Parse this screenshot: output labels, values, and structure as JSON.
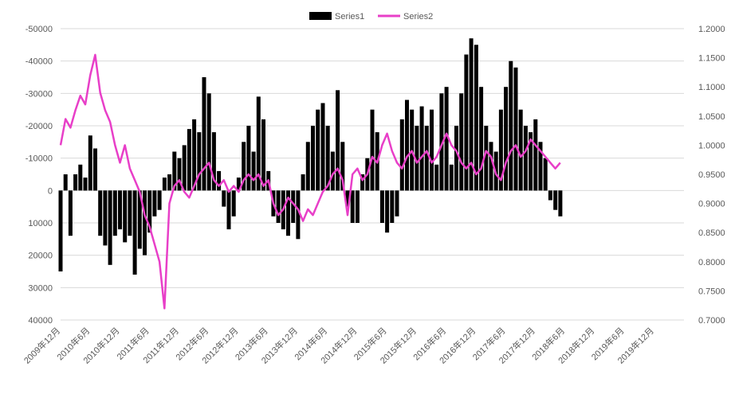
{
  "chart_data": {
    "type": "bar+line",
    "legend": {
      "position": "top-center",
      "entries": [
        {
          "name": "Series1",
          "color": "#000000",
          "marker": "bar"
        },
        {
          "name": "Series2",
          "color": "#e83fc8",
          "marker": "line"
        }
      ]
    },
    "grid": "horizontal",
    "y_left": {
      "reversed": true,
      "min": -50000,
      "max": 40000,
      "ticks": [
        -50000,
        -40000,
        -30000,
        -20000,
        -10000,
        0,
        10000,
        20000,
        30000,
        40000
      ],
      "tick_labels": [
        "-50000",
        "-40000",
        "-30000",
        "-20000",
        "-10000",
        "0",
        "10000",
        "20000",
        "30000",
        "40000"
      ]
    },
    "y_right": {
      "min": 0.7,
      "max": 1.2,
      "ticks": [
        1.2,
        1.15,
        1.1,
        1.05,
        1.0,
        0.95,
        0.9,
        0.85,
        0.8,
        0.75,
        0.7
      ],
      "tick_labels": [
        "1.2000",
        "1.1500",
        "1.1000",
        "1.0500",
        "1.0000",
        "0.9500",
        "0.9000",
        "0.8500",
        "0.8000",
        "0.7500",
        "0.7000"
      ]
    },
    "x_axis": {
      "start": "2009-12",
      "end": "2020-06",
      "tick_labels": [
        "2009年12月",
        "2010年6月",
        "2010年12月",
        "2011年6月",
        "2011年12月",
        "2012年6月",
        "2012年12月",
        "2013年6月",
        "2013年12月",
        "2014年6月",
        "2014年12月",
        "2015年6月",
        "2015年12月",
        "2016年6月",
        "2016年12月",
        "2017年6月",
        "2017年12月",
        "2018年6月",
        "2018年12月",
        "2019年6月",
        "2019年12月"
      ]
    },
    "series": [
      {
        "name": "Series1",
        "type": "bar",
        "axis": "left",
        "color": "#000000",
        "points": [
          [
            "2009-12",
            25000
          ],
          [
            "2010-01",
            -5000
          ],
          [
            "2010-02",
            14000
          ],
          [
            "2010-03",
            -5000
          ],
          [
            "2010-04",
            -8000
          ],
          [
            "2010-05",
            -4000
          ],
          [
            "2010-06",
            -17000
          ],
          [
            "2010-07",
            -13000
          ],
          [
            "2010-08",
            14000
          ],
          [
            "2010-09",
            17000
          ],
          [
            "2010-10",
            23000
          ],
          [
            "2010-11",
            14000
          ],
          [
            "2010-12",
            12000
          ],
          [
            "2011-01",
            16000
          ],
          [
            "2011-02",
            14000
          ],
          [
            "2011-03",
            26000
          ],
          [
            "2011-04",
            18000
          ],
          [
            "2011-05",
            20000
          ],
          [
            "2011-06",
            13000
          ],
          [
            "2011-07",
            8000
          ],
          [
            "2011-08",
            6000
          ],
          [
            "2011-09",
            -4000
          ],
          [
            "2011-10",
            -5000
          ],
          [
            "2011-11",
            -12000
          ],
          [
            "2011-12",
            -10000
          ],
          [
            "2012-01",
            -14000
          ],
          [
            "2012-02",
            -19000
          ],
          [
            "2012-03",
            -22000
          ],
          [
            "2012-04",
            -18000
          ],
          [
            "2012-05",
            -35000
          ],
          [
            "2012-06",
            -30000
          ],
          [
            "2012-07",
            -18000
          ],
          [
            "2012-08",
            -6000
          ],
          [
            "2012-09",
            5000
          ],
          [
            "2012-10",
            12000
          ],
          [
            "2012-11",
            8000
          ],
          [
            "2012-12",
            -4000
          ],
          [
            "2013-01",
            -15000
          ],
          [
            "2013-02",
            -20000
          ],
          [
            "2013-03",
            -12000
          ],
          [
            "2013-04",
            -29000
          ],
          [
            "2013-05",
            -22000
          ],
          [
            "2013-06",
            -6000
          ],
          [
            "2013-07",
            8000
          ],
          [
            "2013-08",
            10000
          ],
          [
            "2013-09",
            12000
          ],
          [
            "2013-10",
            14000
          ],
          [
            "2013-11",
            10000
          ],
          [
            "2013-12",
            15000
          ],
          [
            "2014-01",
            -5000
          ],
          [
            "2014-02",
            -15000
          ],
          [
            "2014-03",
            -20000
          ],
          [
            "2014-04",
            -25000
          ],
          [
            "2014-05",
            -27000
          ],
          [
            "2014-06",
            -20000
          ],
          [
            "2014-07",
            -12000
          ],
          [
            "2014-08",
            -31000
          ],
          [
            "2014-09",
            -15000
          ],
          [
            "2014-10",
            5000
          ],
          [
            "2014-11",
            10000
          ],
          [
            "2014-12",
            10000
          ],
          [
            "2015-01",
            -5000
          ],
          [
            "2015-02",
            -10000
          ],
          [
            "2015-03",
            -25000
          ],
          [
            "2015-04",
            -18000
          ],
          [
            "2015-05",
            10000
          ],
          [
            "2015-06",
            13000
          ],
          [
            "2015-07",
            10000
          ],
          [
            "2015-08",
            8000
          ],
          [
            "2015-09",
            -22000
          ],
          [
            "2015-10",
            -28000
          ],
          [
            "2015-11",
            -25000
          ],
          [
            "2015-12",
            -20000
          ],
          [
            "2016-01",
            -26000
          ],
          [
            "2016-02",
            -20000
          ],
          [
            "2016-03",
            -25000
          ],
          [
            "2016-04",
            -8000
          ],
          [
            "2016-05",
            -30000
          ],
          [
            "2016-06",
            -32000
          ],
          [
            "2016-07",
            -8000
          ],
          [
            "2016-08",
            -20000
          ],
          [
            "2016-09",
            -30000
          ],
          [
            "2016-10",
            -42000
          ],
          [
            "2016-11",
            -47000
          ],
          [
            "2016-12",
            -45000
          ],
          [
            "2017-01",
            -32000
          ],
          [
            "2017-02",
            -20000
          ],
          [
            "2017-03",
            -15000
          ],
          [
            "2017-04",
            -12000
          ],
          [
            "2017-05",
            -25000
          ],
          [
            "2017-06",
            -32000
          ],
          [
            "2017-07",
            -40000
          ],
          [
            "2017-08",
            -38000
          ],
          [
            "2017-09",
            -25000
          ],
          [
            "2017-10",
            -20000
          ],
          [
            "2017-11",
            -18000
          ],
          [
            "2017-12",
            -22000
          ],
          [
            "2018-01",
            -15000
          ],
          [
            "2018-02",
            -10000
          ],
          [
            "2018-03",
            3000
          ],
          [
            "2018-04",
            6000
          ],
          [
            "2018-05",
            8000
          ]
        ]
      },
      {
        "name": "Series2",
        "type": "line",
        "axis": "right",
        "color": "#e83fc8",
        "points": [
          [
            "2009-12",
            1.0
          ],
          [
            "2010-01",
            1.045
          ],
          [
            "2010-02",
            1.03
          ],
          [
            "2010-03",
            1.06
          ],
          [
            "2010-04",
            1.085
          ],
          [
            "2010-05",
            1.07
          ],
          [
            "2010-06",
            1.12
          ],
          [
            "2010-07",
            1.155
          ],
          [
            "2010-08",
            1.09
          ],
          [
            "2010-09",
            1.06
          ],
          [
            "2010-10",
            1.04
          ],
          [
            "2010-11",
            1.0
          ],
          [
            "2010-12",
            0.97
          ],
          [
            "2011-01",
            1.0
          ],
          [
            "2011-02",
            0.96
          ],
          [
            "2011-03",
            0.94
          ],
          [
            "2011-04",
            0.92
          ],
          [
            "2011-05",
            0.88
          ],
          [
            "2011-06",
            0.86
          ],
          [
            "2011-07",
            0.83
          ],
          [
            "2011-08",
            0.8
          ],
          [
            "2011-09",
            0.72
          ],
          [
            "2011-10",
            0.9
          ],
          [
            "2011-11",
            0.93
          ],
          [
            "2011-12",
            0.94
          ],
          [
            "2012-01",
            0.92
          ],
          [
            "2012-02",
            0.91
          ],
          [
            "2012-03",
            0.93
          ],
          [
            "2012-04",
            0.95
          ],
          [
            "2012-05",
            0.96
          ],
          [
            "2012-06",
            0.97
          ],
          [
            "2012-07",
            0.94
          ],
          [
            "2012-08",
            0.93
          ],
          [
            "2012-09",
            0.94
          ],
          [
            "2012-10",
            0.92
          ],
          [
            "2012-11",
            0.93
          ],
          [
            "2012-12",
            0.92
          ],
          [
            "2013-01",
            0.94
          ],
          [
            "2013-02",
            0.95
          ],
          [
            "2013-03",
            0.94
          ],
          [
            "2013-04",
            0.95
          ],
          [
            "2013-05",
            0.93
          ],
          [
            "2013-06",
            0.94
          ],
          [
            "2013-07",
            0.9
          ],
          [
            "2013-08",
            0.88
          ],
          [
            "2013-09",
            0.89
          ],
          [
            "2013-10",
            0.91
          ],
          [
            "2013-11",
            0.9
          ],
          [
            "2013-12",
            0.89
          ],
          [
            "2014-01",
            0.87
          ],
          [
            "2014-02",
            0.89
          ],
          [
            "2014-03",
            0.88
          ],
          [
            "2014-04",
            0.9
          ],
          [
            "2014-05",
            0.92
          ],
          [
            "2014-06",
            0.93
          ],
          [
            "2014-07",
            0.95
          ],
          [
            "2014-08",
            0.96
          ],
          [
            "2014-09",
            0.94
          ],
          [
            "2014-10",
            0.88
          ],
          [
            "2014-11",
            0.95
          ],
          [
            "2014-12",
            0.96
          ],
          [
            "2015-01",
            0.94
          ],
          [
            "2015-02",
            0.95
          ],
          [
            "2015-03",
            0.98
          ],
          [
            "2015-04",
            0.97
          ],
          [
            "2015-05",
            1.0
          ],
          [
            "2015-06",
            1.02
          ],
          [
            "2015-07",
            0.99
          ],
          [
            "2015-08",
            0.97
          ],
          [
            "2015-09",
            0.96
          ],
          [
            "2015-10",
            0.98
          ],
          [
            "2015-11",
            0.99
          ],
          [
            "2015-12",
            0.97
          ],
          [
            "2016-01",
            0.98
          ],
          [
            "2016-02",
            0.99
          ],
          [
            "2016-03",
            0.97
          ],
          [
            "2016-04",
            0.98
          ],
          [
            "2016-05",
            1.0
          ],
          [
            "2016-06",
            1.02
          ],
          [
            "2016-07",
            1.0
          ],
          [
            "2016-08",
            0.99
          ],
          [
            "2016-09",
            0.97
          ],
          [
            "2016-10",
            0.96
          ],
          [
            "2016-11",
            0.97
          ],
          [
            "2016-12",
            0.95
          ],
          [
            "2017-01",
            0.96
          ],
          [
            "2017-02",
            0.99
          ],
          [
            "2017-03",
            0.98
          ],
          [
            "2017-04",
            0.95
          ],
          [
            "2017-05",
            0.94
          ],
          [
            "2017-06",
            0.97
          ],
          [
            "2017-07",
            0.99
          ],
          [
            "2017-08",
            1.0
          ],
          [
            "2017-09",
            0.98
          ],
          [
            "2017-10",
            0.99
          ],
          [
            "2017-11",
            1.01
          ],
          [
            "2017-12",
            1.0
          ],
          [
            "2018-01",
            0.99
          ],
          [
            "2018-02",
            0.98
          ],
          [
            "2018-03",
            0.97
          ],
          [
            "2018-04",
            0.96
          ],
          [
            "2018-05",
            0.97
          ]
        ]
      }
    ]
  }
}
